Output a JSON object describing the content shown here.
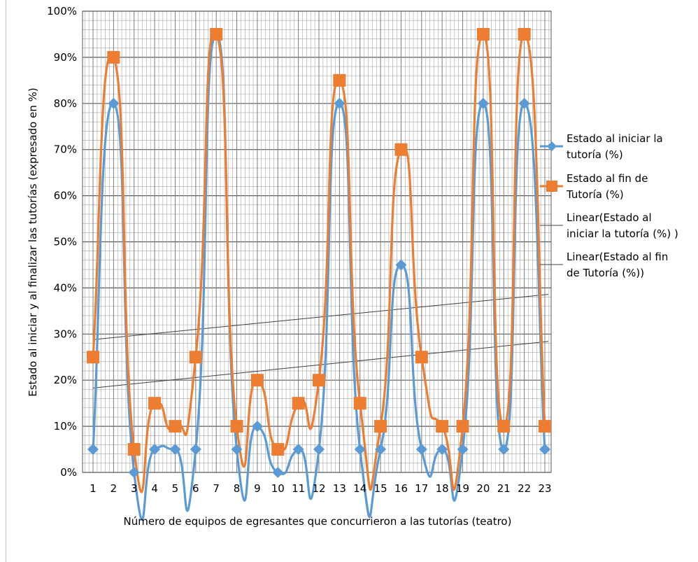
{
  "chart_data": {
    "type": "line",
    "categories": [
      "1",
      "2",
      "3",
      "4",
      "5",
      "6",
      "7",
      "8",
      "9",
      "10",
      "11",
      "12",
      "13",
      "14",
      "15",
      "16",
      "17",
      "18",
      "19",
      "20",
      "21",
      "22",
      "23"
    ],
    "xlabel": "Número de equipos de egresantes que concurrieron a las tutorías (teatro)",
    "ylabel": "Estado al iniciar y al finalizar las tutorías (expresado en %)",
    "ylim": [
      0,
      100
    ],
    "yticks": [
      "0%",
      "10%",
      "20%",
      "30%",
      "40%",
      "50%",
      "60%",
      "70%",
      "80%",
      "90%",
      "100%"
    ],
    "grid": true,
    "legend_position": "right",
    "series": [
      {
        "name_lines": [
          "Estado al iniciar la",
          "tutoría (%)"
        ],
        "color": "#5b9bd5",
        "marker": "diamond",
        "values": [
          5,
          80,
          0,
          5,
          5,
          5,
          95,
          5,
          10,
          0,
          5,
          5,
          80,
          5,
          5,
          45,
          5,
          5,
          5,
          80,
          5,
          80,
          5
        ]
      },
      {
        "name_lines": [
          "Estado al fin de",
          "Tutoría (%)"
        ],
        "color": "#ed7d31",
        "marker": "square",
        "values": [
          25,
          90,
          5,
          15,
          10,
          25,
          95,
          10,
          20,
          5,
          15,
          20,
          85,
          15,
          10,
          70,
          25,
          10,
          10,
          95,
          10,
          95,
          10
        ]
      }
    ],
    "trendlines": [
      {
        "name_lines": [
          "Linear(Estado al",
          "iniciar la tutoría (%) )"
        ],
        "color": "#404040",
        "values_start_end": [
          18.3,
          28.2
        ]
      },
      {
        "name_lines": [
          "Linear(Estado al fin",
          "de Tutoría (%))"
        ],
        "color": "#404040",
        "values_start_end": [
          28.8,
          38.4
        ]
      }
    ]
  }
}
